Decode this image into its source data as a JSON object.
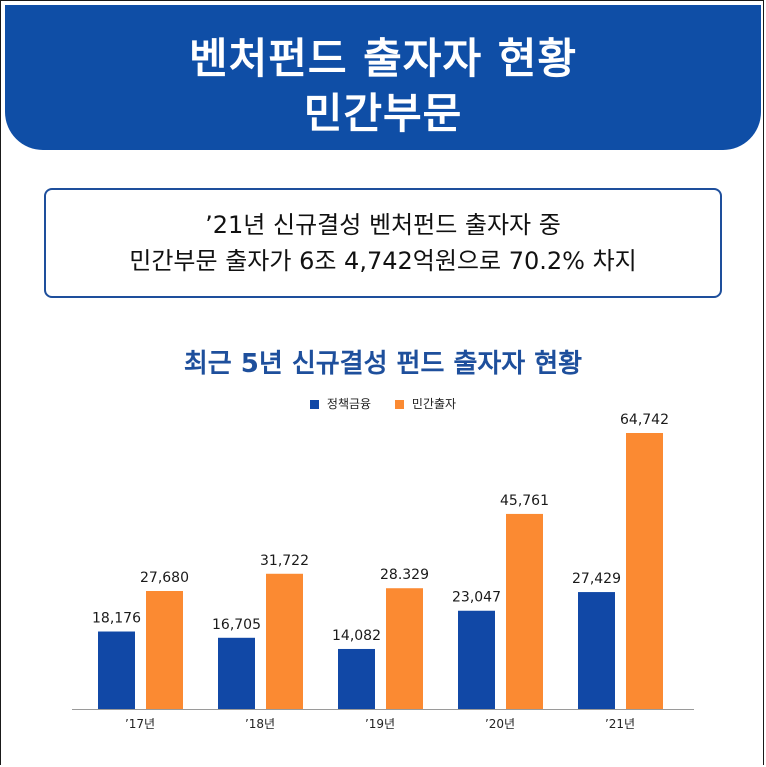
{
  "header": {
    "title_line1": "벤처펀드 출자자 현황",
    "title_line2": "민간부문"
  },
  "summary": {
    "line1": "’21년 신규결성 벤처펀드 출자자 중",
    "line2": "민간부문 출자가 6조 4,742억원으로 70.2% 차지"
  },
  "colors": {
    "header_bg": "#0f4ea6",
    "policy_finance": "#1148a6",
    "private_investment": "#fb8a32"
  },
  "chart_data": {
    "type": "bar",
    "title": "최근 5년 신규결성 펀드 출자자 현황",
    "categories": [
      "’17년",
      "’18년",
      "’19년",
      "’20년",
      "’21년"
    ],
    "series": [
      {
        "name": "정책금융",
        "color": "#1148a6",
        "values": [
          18176,
          16705,
          14082,
          23047,
          27429
        ],
        "labels": [
          "18,176",
          "16,705",
          "14,082",
          "23,047",
          "27,429"
        ]
      },
      {
        "name": "민간출자",
        "color": "#fb8a32",
        "values": [
          27680,
          31722,
          28329,
          45761,
          64742
        ],
        "labels": [
          "27,680",
          "31,722",
          "28.329",
          "45,761",
          "64,742"
        ]
      }
    ],
    "ylim": [
      0,
      70000
    ],
    "grid": false,
    "legend_position": "top-center"
  }
}
